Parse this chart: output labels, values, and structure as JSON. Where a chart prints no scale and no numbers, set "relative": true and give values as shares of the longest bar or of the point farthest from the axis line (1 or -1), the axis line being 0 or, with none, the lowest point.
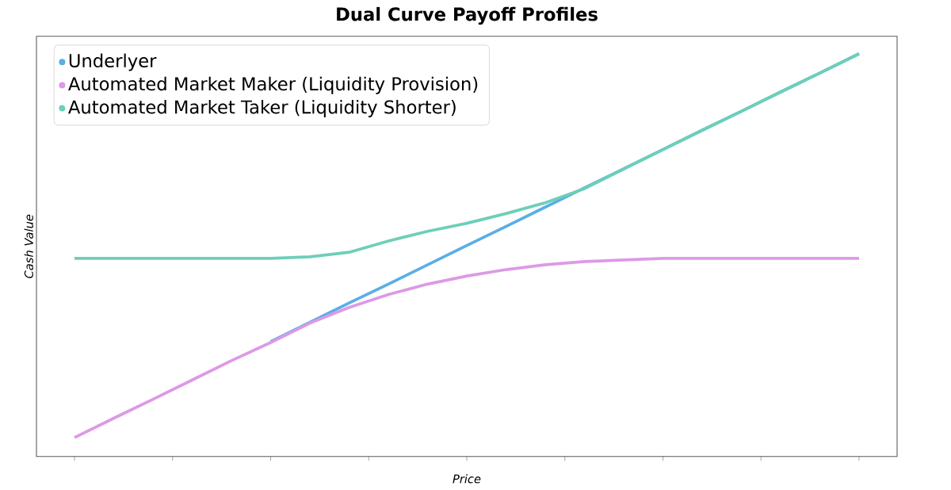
{
  "chart_data": {
    "type": "line",
    "title": "Dual Curve Payoff Profiles",
    "xlabel": "Price",
    "ylabel": "Cash Value",
    "relative": true,
    "legend": "top left",
    "grid": false,
    "tick_labels": false,
    "line_style": "solid",
    "categories": [
      null,
      null,
      null,
      null,
      null,
      null,
      null,
      null,
      null,
      null,
      null,
      null,
      null,
      null,
      null,
      null,
      null,
      null,
      null,
      null,
      null
    ],
    "series": [
      {
        "name": "Underlyer",
        "color": "#5aaee6",
        "values": [
          null,
          null,
          null,
          null,
          null,
          0.285,
          0.333,
          0.381,
          0.428,
          0.476,
          0.524,
          0.571,
          0.619,
          0.667,
          0.714,
          0.762,
          0.81,
          0.857,
          0.905,
          0.952,
          1
        ]
      },
      {
        "name": "Automated Market Maker (Liquidity Provision)",
        "color": "#dd99e6",
        "values": [
          0.047,
          0.095,
          0.142,
          0.19,
          0.238,
          0.283,
          0.331,
          0.37,
          0.402,
          0.428,
          0.448,
          0.464,
          0.476,
          0.484,
          0.488,
          0.492,
          0.492,
          0.492,
          0.492,
          0.492,
          0.492
        ]
      },
      {
        "name": "Automated Market Taker (Liquidity Shorter)",
        "color": "#6dcfb8",
        "values": [
          0.492,
          0.492,
          0.492,
          0.492,
          0.492,
          0.492,
          0.496,
          0.507,
          0.535,
          0.559,
          0.579,
          0.603,
          0.63,
          0.665,
          0.714,
          0.762,
          0.81,
          0.857,
          0.905,
          0.952,
          1
        ]
      }
    ]
  }
}
